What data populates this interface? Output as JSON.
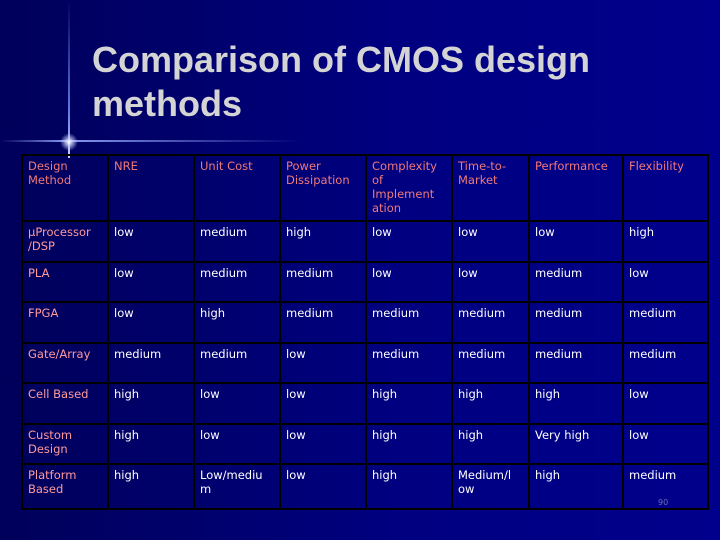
{
  "slide": {
    "title_line1": "Comparison of CMOS design",
    "title_line2": "methods",
    "page_number": "90"
  },
  "table": {
    "headers": [
      "Design Method",
      "NRE",
      "Unit Cost",
      "Power Dissipation",
      "Complexity of Implement ation",
      "Time-to-Market",
      "Performance",
      "Flexibility"
    ],
    "rows": [
      [
        "µProcessor /DSP",
        "low",
        "medium",
        "high",
        "low",
        "low",
        "low",
        "high"
      ],
      [
        "PLA",
        "low",
        "medium",
        "medium",
        "low",
        "low",
        "medium",
        "low"
      ],
      [
        "FPGA",
        "low",
        "high",
        "medium",
        "medium",
        "medium",
        "medium",
        "medium"
      ],
      [
        "Gate/Array",
        "medium",
        "medium",
        "low",
        "medium",
        "medium",
        "medium",
        "medium"
      ],
      [
        "Cell Based",
        "high",
        "low",
        "low",
        "high",
        "high",
        "high",
        "low"
      ],
      [
        "Custom Design",
        "high",
        "low",
        "low",
        "high",
        "high",
        "Very high",
        "low"
      ],
      [
        "Platform Based",
        "high",
        "Low/mediu m",
        "low",
        "high",
        "Medium/l ow",
        "high",
        "medium"
      ]
    ]
  }
}
